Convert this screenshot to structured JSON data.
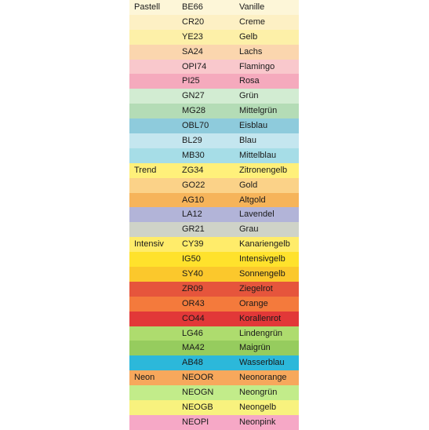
{
  "rows": [
    {
      "group": "Pastell",
      "code": "BE66",
      "name": "Vanille",
      "color": "#fdf6d8"
    },
    {
      "group": "",
      "code": "CR20",
      "name": "Creme",
      "color": "#fdf0c4"
    },
    {
      "group": "",
      "code": "YE23",
      "name": "Gelb",
      "color": "#fdf0a8"
    },
    {
      "group": "",
      "code": "SA24",
      "name": "Lachs",
      "color": "#fbd6ae"
    },
    {
      "group": "",
      "code": "OPI74",
      "name": "Flamingo",
      "color": "#f9c8cc"
    },
    {
      "group": "",
      "code": "PI25",
      "name": "Rosa",
      "color": "#f5aabd"
    },
    {
      "group": "",
      "code": "GN27",
      "name": "Grün",
      "color": "#d2ecd2"
    },
    {
      "group": "",
      "code": "MG28",
      "name": "Mittelgrün",
      "color": "#b4dcb6"
    },
    {
      "group": "",
      "code": "OBL70",
      "name": "Eisblau",
      "color": "#8ecbdc"
    },
    {
      "group": "",
      "code": "BL29",
      "name": "Blau",
      "color": "#c4e6ef"
    },
    {
      "group": "",
      "code": "MB30",
      "name": "Mittelblau",
      "color": "#a6dde7"
    },
    {
      "group": "Trend",
      "code": "ZG34",
      "name": "Zitronengelb",
      "color": "#fff07a"
    },
    {
      "group": "",
      "code": "GO22",
      "name": "Gold",
      "color": "#fbd288"
    },
    {
      "group": "",
      "code": "AG10",
      "name": "Altgold",
      "color": "#f6b45a"
    },
    {
      "group": "",
      "code": "LA12",
      "name": "Lavendel",
      "color": "#b2b4d8"
    },
    {
      "group": "",
      "code": "GR21",
      "name": "Grau",
      "color": "#cfd3c8"
    },
    {
      "group": "Intensiv",
      "code": "CY39",
      "name": "Kanariengelb",
      "color": "#ffec6a"
    },
    {
      "group": "",
      "code": "IG50",
      "name": "Intensivgelb",
      "color": "#ffe22c"
    },
    {
      "group": "",
      "code": "SY40",
      "name": "Sonnengelb",
      "color": "#fbc82c"
    },
    {
      "group": "",
      "code": "ZR09",
      "name": "Ziegelrot",
      "color": "#e6553c"
    },
    {
      "group": "",
      "code": "OR43",
      "name": "Orange",
      "color": "#f47a3c"
    },
    {
      "group": "",
      "code": "CO44",
      "name": "Korallenrot",
      "color": "#e23838"
    },
    {
      "group": "",
      "code": "LG46",
      "name": "Lindengrün",
      "color": "#aedc6e"
    },
    {
      "group": "",
      "code": "MA42",
      "name": "Maigrün",
      "color": "#96cc5e"
    },
    {
      "group": "",
      "code": "AB48",
      "name": "Wasserblau",
      "color": "#2cb8da"
    },
    {
      "group": "Neon",
      "code": "NEOOR",
      "name": "Neonorange",
      "color": "#f7a85c"
    },
    {
      "group": "",
      "code": "NEOGN",
      "name": "Neongrün",
      "color": "#c2ec8a"
    },
    {
      "group": "",
      "code": "NEOGB",
      "name": "Neongelb",
      "color": "#f8f27e"
    },
    {
      "group": "",
      "code": "NEOPI",
      "name": "Neonpink",
      "color": "#f6a8c6"
    }
  ]
}
